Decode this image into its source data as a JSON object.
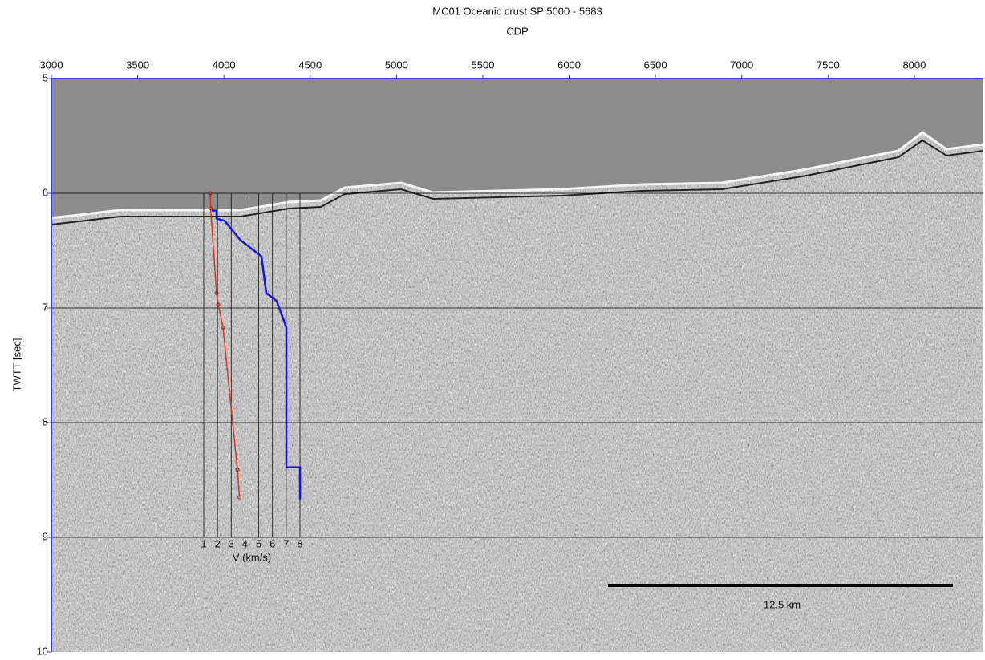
{
  "chart_data": [
    {
      "type": "image",
      "title": "MC01 Oceanic crust  SP 5000 - 5683",
      "x_label": "CDP",
      "y_label": "TWTT [sec]",
      "xlim": [
        3000,
        8400
      ],
      "xticks": [
        3000,
        3500,
        4000,
        4500,
        5000,
        5500,
        6000,
        6500,
        7000,
        7500,
        8000
      ],
      "ylim": [
        5,
        10
      ],
      "y_reversed": true,
      "yticks": [
        5,
        6,
        7,
        8,
        9,
        10
      ],
      "grid": true,
      "axis_color": "#3b3bf0",
      "annotation": "12.5 km"
    },
    {
      "type": "line",
      "x_label": "V (km/s)",
      "xlim": [
        1,
        8
      ],
      "xticks": [
        1,
        2,
        3,
        4,
        5,
        6,
        7,
        8
      ],
      "ylim": [
        6,
        9
      ],
      "series": [
        {
          "color": "#e0301e",
          "markers": true,
          "x": [
            1.47,
            1.5,
            1.93,
            2.05,
            2.4,
            3.45,
            3.6
          ],
          "values": [
            6.0,
            6.13,
            6.87,
            6.97,
            7.17,
            8.41,
            8.65
          ]
        },
        {
          "color": "#1414e6",
          "markers": false,
          "x": [
            1.58,
            1.93,
            1.93,
            2.52,
            3.68,
            5.2,
            5.55,
            6.31,
            7.01,
            7.01,
            8.0,
            8.0
          ],
          "values": [
            6.15,
            6.15,
            6.22,
            6.24,
            6.41,
            6.55,
            6.87,
            6.94,
            7.17,
            8.39,
            8.39,
            8.67
          ]
        }
      ]
    }
  ]
}
